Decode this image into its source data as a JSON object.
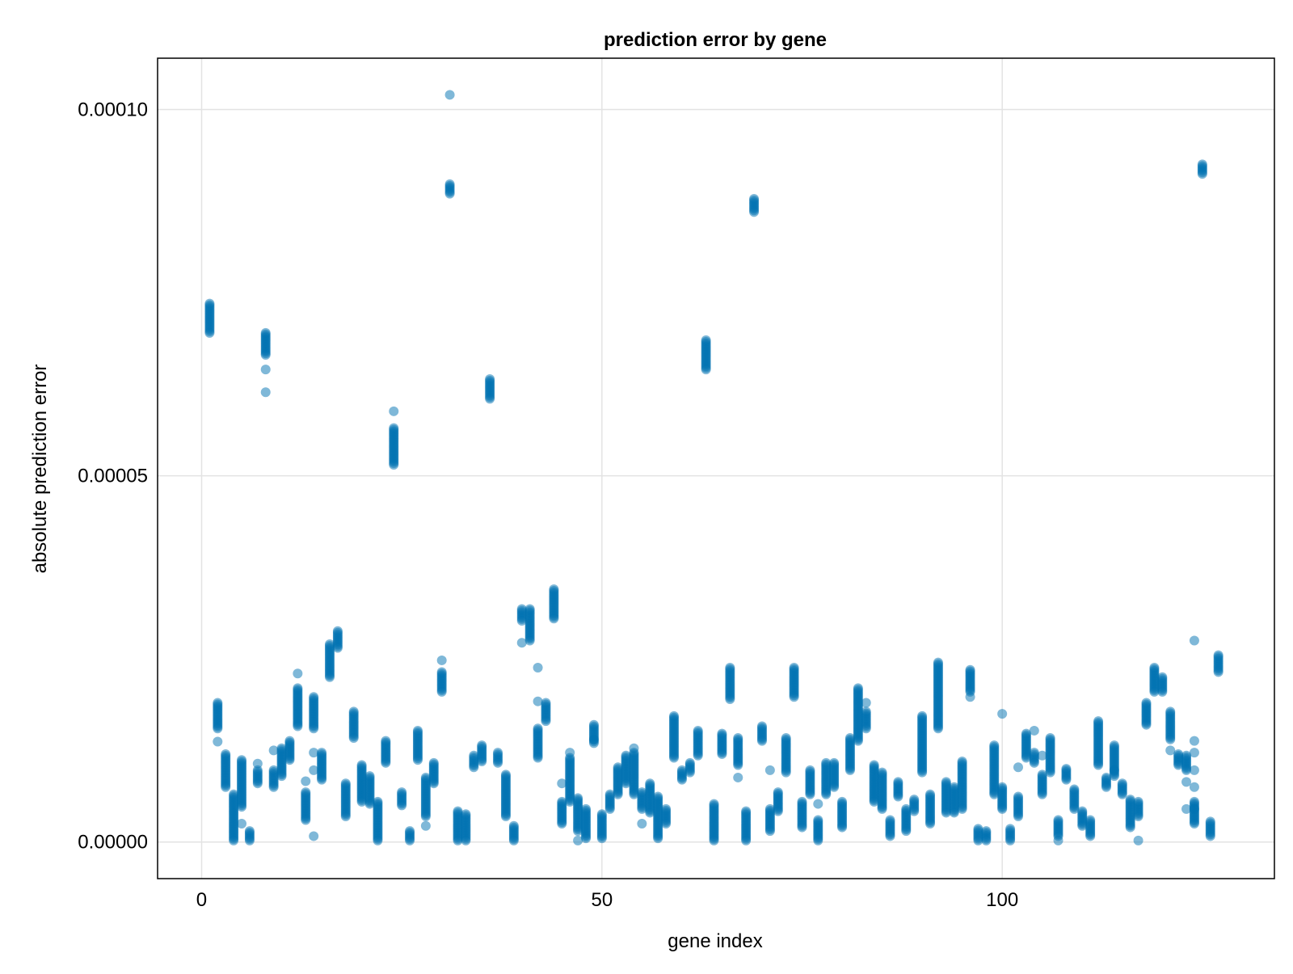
{
  "chart_data": {
    "type": "scatter",
    "title": "prediction error by gene",
    "xlabel": "gene index",
    "ylabel": "absolute prediction error",
    "xlim": [
      -5.5,
      134
    ],
    "ylim": [
      -5e-06,
      0.000107
    ],
    "x_ticks": [
      0,
      50,
      100
    ],
    "x_tick_labels": [
      "0",
      "50",
      "100"
    ],
    "y_ticks": [
      0,
      5e-05,
      0.0001
    ],
    "y_tick_labels": [
      "0.00000",
      "0.00005",
      "0.00010"
    ],
    "grid": true,
    "legend": false,
    "marker_color": "#0072b2",
    "marker_alpha": 0.5,
    "series": [
      {
        "columns": [
          [
            1,
            6.95e-05,
            7.35e-05
          ],
          [
            2,
            1.55e-05,
            1.9e-05,
            [
              1.37e-05
            ]
          ],
          [
            3,
            7.5e-06,
            1.2e-05
          ],
          [
            4,
            2e-07,
            6.5e-06
          ],
          [
            5,
            4.8e-06,
            1.12e-05,
            [
              2.5e-06
            ]
          ],
          [
            6,
            2e-07,
            1.5e-06
          ],
          [
            7,
            8e-06,
            9.8e-06,
            [
              1.07e-05
            ]
          ],
          [
            8,
            6.65e-05,
            6.95e-05,
            [
              6.45e-05,
              6.14e-05
            ]
          ],
          [
            9,
            7.5e-06,
            9.8e-06,
            [
              1.25e-05
            ]
          ],
          [
            10,
            9e-06,
            1.28e-05
          ],
          [
            11,
            1.12e-05,
            1.38e-05
          ],
          [
            12,
            1.58e-05,
            2.1e-05,
            [
              2.3e-05
            ]
          ],
          [
            13,
            3e-06,
            6.8e-06,
            [
              8.3e-06
            ]
          ],
          [
            14,
            1.55e-05,
            1.98e-05,
            [
              1.22e-05,
              9.8e-06,
              8e-07
            ]
          ],
          [
            15,
            8.5e-06,
            1.22e-05
          ],
          [
            16,
            2.25e-05,
            2.7e-05
          ],
          [
            17,
            2.65e-05,
            2.88e-05
          ],
          [
            18,
            3.5e-06,
            8e-06
          ],
          [
            19,
            1.42e-05,
            1.78e-05
          ],
          [
            20,
            5.5e-06,
            1.05e-05
          ],
          [
            21,
            5.2e-06,
            9e-06
          ],
          [
            22,
            2e-07,
            5.5e-06
          ],
          [
            23,
            1.08e-05,
            1.38e-05
          ],
          [
            24,
            5.15e-05,
            5.65e-05,
            [
              5.88e-05
            ]
          ],
          [
            25,
            5e-06,
            6.8e-06
          ],
          [
            26,
            2e-07,
            1.5e-06
          ],
          [
            27,
            1.12e-05,
            1.52e-05
          ],
          [
            28,
            3.5e-06,
            8.8e-06,
            [
              2.2e-06
            ]
          ],
          [
            29,
            8e-06,
            1.08e-05
          ],
          [
            30,
            2.05e-05,
            2.32e-05,
            [
              2.48e-05
            ]
          ],
          [
            31,
            8.85e-05,
            8.98e-05,
            [
              0.000102
            ]
          ],
          [
            32,
            2e-07,
            4.2e-06
          ],
          [
            33,
            2e-07,
            3.8e-06
          ],
          [
            34,
            1.02e-05,
            1.18e-05
          ],
          [
            35,
            1.1e-05,
            1.32e-05
          ],
          [
            36,
            6.05e-05,
            6.32e-05
          ],
          [
            37,
            1.08e-05,
            1.22e-05
          ],
          [
            38,
            3.5e-06,
            9.2e-06
          ],
          [
            39,
            2e-07,
            2.2e-06
          ],
          [
            40,
            3.02e-05,
            3.18e-05,
            [
              2.72e-05
            ]
          ],
          [
            41,
            2.75e-05,
            3.18e-05
          ],
          [
            42,
            1.15e-05,
            1.55e-05,
            [
              2.38e-05,
              1.92e-05
            ]
          ],
          [
            43,
            1.65e-05,
            1.9e-05
          ],
          [
            44,
            3.05e-05,
            3.45e-05
          ],
          [
            45,
            2.5e-06,
            5.5e-06,
            [
              8e-06
            ]
          ],
          [
            46,
            5.5e-06,
            1.15e-05,
            [
              1.22e-05
            ]
          ],
          [
            47,
            1.5e-06,
            6e-06,
            [
              2e-07
            ]
          ],
          [
            48,
            5e-07,
            4.5e-06
          ],
          [
            49,
            1.35e-05,
            1.6e-05,
            [
              1.4e-05
            ]
          ],
          [
            50,
            5e-07,
            3.8e-06
          ],
          [
            51,
            4.5e-06,
            6.5e-06
          ],
          [
            52,
            6.5e-06,
            1.02e-05
          ],
          [
            53,
            8e-06,
            1.18e-05
          ],
          [
            54,
            6.5e-06,
            1.22e-05,
            [
              1.28e-05
            ]
          ],
          [
            55,
            4.5e-06,
            6.8e-06,
            [
              2.5e-06
            ]
          ],
          [
            56,
            4e-06,
            8e-06
          ],
          [
            57,
            5e-07,
            6.2e-06
          ],
          [
            58,
            2.5e-06,
            4.5e-06
          ],
          [
            59,
            1.15e-05,
            1.72e-05
          ],
          [
            60,
            8.5e-06,
            9.8e-06
          ],
          [
            61,
            9.5e-06,
            1.08e-05
          ],
          [
            62,
            1.18e-05,
            1.52e-05
          ],
          [
            63,
            6.45e-05,
            6.85e-05
          ],
          [
            64,
            2e-07,
            5.2e-06
          ],
          [
            65,
            1.2e-05,
            1.48e-05
          ],
          [
            66,
            1.95e-05,
            2.38e-05
          ],
          [
            67,
            1.05e-05,
            1.42e-05,
            [
              8.8e-06
            ]
          ],
          [
            68,
            2e-07,
            4.2e-06
          ],
          [
            69,
            8.6e-05,
            8.78e-05
          ],
          [
            70,
            1.38e-05,
            1.58e-05
          ],
          [
            71,
            1.5e-06,
            4.5e-06,
            [
              9.8e-06
            ]
          ],
          [
            72,
            4.2e-06,
            6.8e-06
          ],
          [
            73,
            9.5e-06,
            1.42e-05
          ],
          [
            74,
            1.98e-05,
            2.38e-05
          ],
          [
            75,
            2e-06,
            5.5e-06
          ],
          [
            76,
            6.5e-06,
            9.8e-06
          ],
          [
            77,
            2e-07,
            3e-06,
            [
              5.2e-06
            ]
          ],
          [
            78,
            6.5e-06,
            1.08e-05
          ],
          [
            79,
            7.5e-06,
            1.08e-05
          ],
          [
            80,
            2e-06,
            5.5e-06
          ],
          [
            81,
            9.8e-06,
            1.42e-05
          ],
          [
            82,
            1.38e-05,
            2.1e-05
          ],
          [
            83,
            1.55e-05,
            1.78e-05,
            [
              1.9e-05
            ]
          ],
          [
            84,
            5.5e-06,
            1.05e-05
          ],
          [
            85,
            4.5e-06,
            9.5e-06
          ],
          [
            86,
            8e-07,
            3e-06
          ],
          [
            87,
            6.2e-06,
            8.2e-06
          ],
          [
            88,
            1.5e-06,
            4.5e-06
          ],
          [
            89,
            4.2e-06,
            5.8e-06
          ],
          [
            90,
            9.5e-06,
            1.72e-05
          ],
          [
            91,
            2.5e-06,
            6.5e-06
          ],
          [
            92,
            1.55e-05,
            2.45e-05
          ],
          [
            93,
            4e-06,
            8.2e-06
          ],
          [
            94,
            4e-06,
            7.5e-06
          ],
          [
            95,
            4.5e-06,
            1.1e-05
          ],
          [
            96,
            2.05e-05,
            2.35e-05,
            [
              1.98e-05
            ]
          ],
          [
            97,
            2e-07,
            1.8e-06
          ],
          [
            98,
            2e-07,
            1.5e-06
          ],
          [
            99,
            6.5e-06,
            1.32e-05
          ],
          [
            100,
            4.5e-06,
            7.5e-06,
            [
              1.75e-05
            ]
          ],
          [
            101,
            2e-07,
            1.8e-06
          ],
          [
            102,
            3.5e-06,
            6.2e-06,
            [
              1.02e-05
            ]
          ],
          [
            103,
            1.15e-05,
            1.48e-05
          ],
          [
            104,
            1.08e-05,
            1.22e-05,
            [
              1.52e-05
            ]
          ],
          [
            105,
            6.5e-06,
            9.2e-06,
            [
              1.18e-05
            ]
          ],
          [
            106,
            9.5e-06,
            1.42e-05
          ],
          [
            107,
            8e-07,
            3e-06,
            [
              2e-07
            ]
          ],
          [
            108,
            8.5e-06,
            1e-05
          ],
          [
            109,
            4.5e-06,
            7.2e-06
          ],
          [
            110,
            2.2e-06,
            4.2e-06
          ],
          [
            111,
            8e-07,
            3e-06
          ],
          [
            112,
            1.05e-05,
            1.65e-05
          ],
          [
            113,
            7.5e-06,
            8.8e-06
          ],
          [
            114,
            9e-06,
            1.32e-05,
            [
              9.8e-06
            ]
          ],
          [
            115,
            6.5e-06,
            8e-06
          ],
          [
            116,
            2e-06,
            5.8e-06
          ],
          [
            117,
            3.5e-06,
            5.5e-06,
            [
              2e-07
            ]
          ],
          [
            118,
            1.6e-05,
            1.9e-05
          ],
          [
            119,
            2.05e-05,
            2.38e-05
          ],
          [
            120,
            2.05e-05,
            2.25e-05
          ],
          [
            121,
            1.4e-05,
            1.78e-05,
            [
              1.25e-05
            ]
          ],
          [
            122,
            1.05e-05,
            1.2e-05
          ],
          [
            123,
            9.8e-06,
            1.18e-05,
            [
              8.2e-06,
              4.5e-06
            ]
          ],
          [
            124,
            2.5e-06,
            5.5e-06,
            [
              2.75e-05,
              1.38e-05,
              1.22e-05,
              9.8e-06,
              7.5e-06,
              4.5e-06
            ]
          ],
          [
            125,
            9.12e-05,
            9.25e-05
          ],
          [
            126,
            8e-07,
            2.8e-06
          ],
          [
            127,
            2.32e-05,
            2.55e-05
          ]
        ]
      }
    ]
  }
}
